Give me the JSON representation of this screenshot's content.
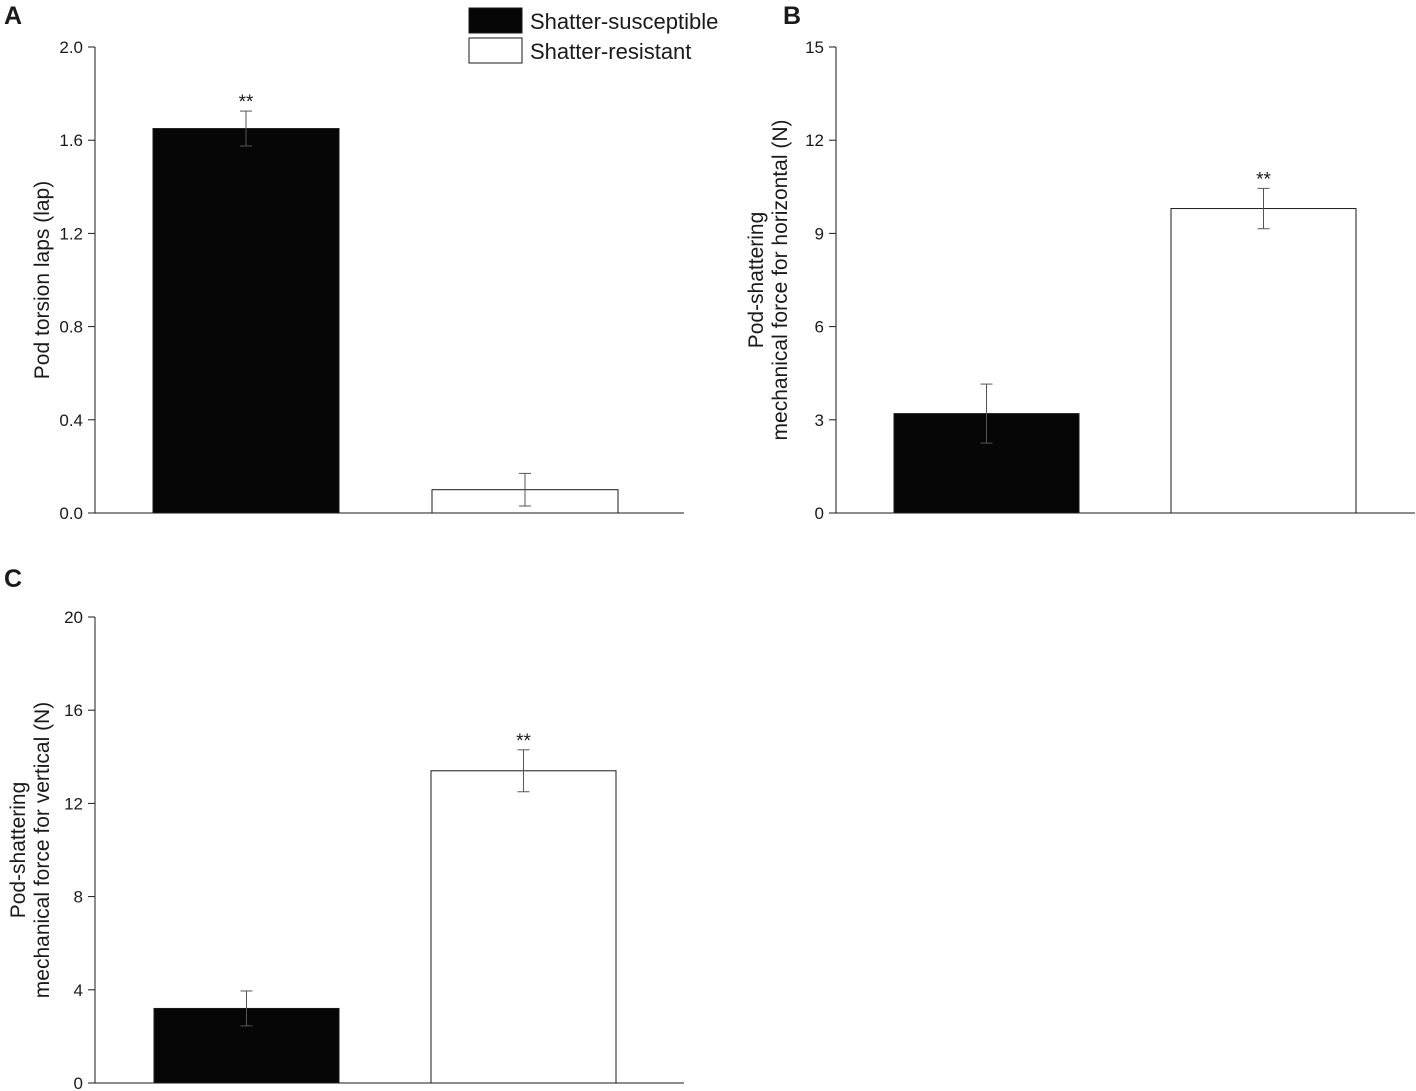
{
  "legend": {
    "items": [
      {
        "label": "Shatter-susceptible",
        "color": "#060606"
      },
      {
        "label": "Shatter-resistant",
        "color": "#ffffff"
      }
    ]
  },
  "chart_data": [
    {
      "type": "bar",
      "panel": "A",
      "categories": [
        "Shatter-susceptible",
        "Shatter-resistant"
      ],
      "series": [
        {
          "values": [
            1.65,
            0.1
          ],
          "errors": [
            0.075,
            0.07
          ]
        }
      ],
      "colors": [
        "#060606",
        "#ffffff"
      ],
      "significance": [
        "**",
        ""
      ],
      "ylabel_lines": [
        "Pod torsion laps (lap)"
      ],
      "ylim": [
        0,
        2.0
      ],
      "yticks": [
        "0.0",
        "0.4",
        "0.8",
        "1.2",
        "1.6",
        "2.0"
      ]
    },
    {
      "type": "bar",
      "panel": "B",
      "categories": [
        "Shatter-susceptible",
        "Shatter-resistant"
      ],
      "series": [
        {
          "values": [
            3.2,
            9.8
          ],
          "errors": [
            0.95,
            0.65
          ]
        }
      ],
      "colors": [
        "#060606",
        "#ffffff"
      ],
      "significance": [
        "",
        "**"
      ],
      "ylabel_lines": [
        "Pod-shattering",
        "mechanical force for horizontal (N)"
      ],
      "ylim": [
        0,
        15
      ],
      "yticks": [
        "0",
        "3",
        "6",
        "9",
        "12",
        "15"
      ]
    },
    {
      "type": "bar",
      "panel": "C",
      "categories": [
        "Shatter-susceptible",
        "Shatter-resistant"
      ],
      "series": [
        {
          "values": [
            3.2,
            13.4
          ],
          "errors": [
            0.75,
            0.9
          ]
        }
      ],
      "colors": [
        "#060606",
        "#ffffff"
      ],
      "significance": [
        "",
        "**"
      ],
      "ylabel_lines": [
        "Pod-shattering",
        "mechanical force for vertical (N)"
      ],
      "ylim": [
        0,
        20
      ],
      "yticks": [
        "0",
        "4",
        "8",
        "12",
        "16",
        "20"
      ]
    }
  ]
}
